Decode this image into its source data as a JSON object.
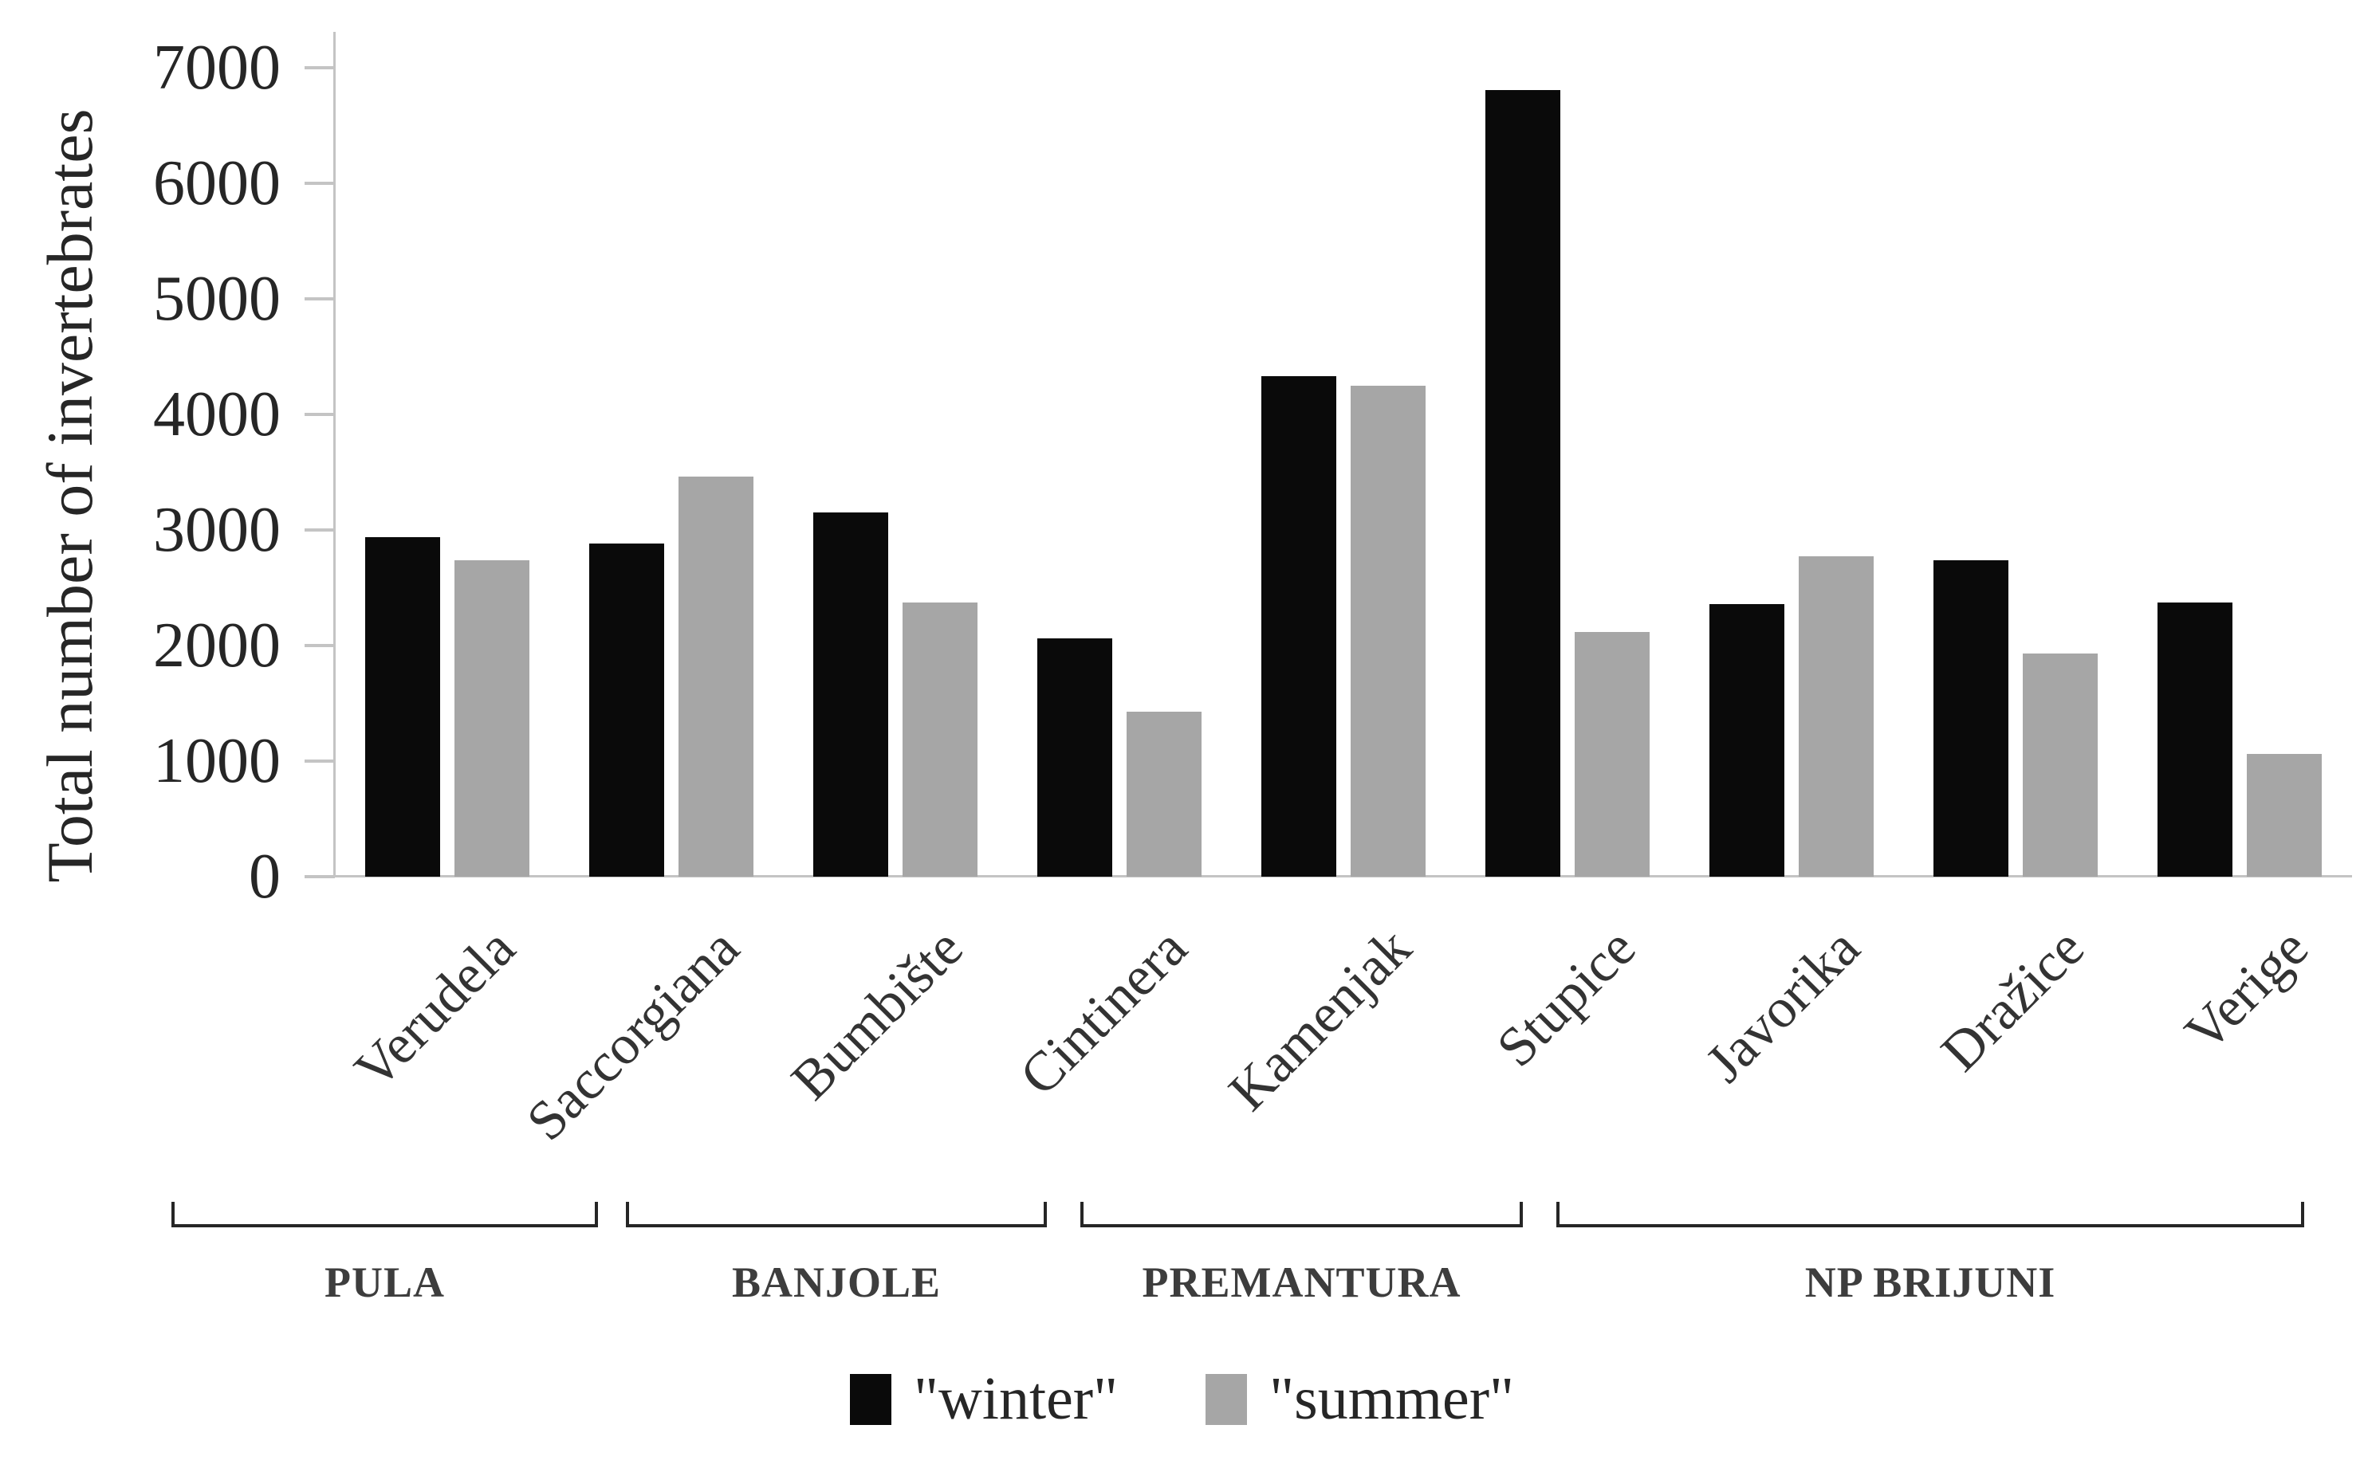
{
  "chart_data": {
    "type": "bar",
    "title": "",
    "ylabel": "Total number of invertebrates",
    "xlabel": "",
    "ylim": [
      0,
      7000
    ],
    "ytick_step": 1000,
    "yticks": [
      "0",
      "1000",
      "2000",
      "3000",
      "4000",
      "5000",
      "6000",
      "7000"
    ],
    "grid": false,
    "legend_position": "bottom",
    "categories": [
      "Verudela",
      "Saccorgiana",
      "Bumbište",
      "Cintinera",
      "Kamenjak",
      "Stupice",
      "Javorika",
      "Dražice",
      "Verige"
    ],
    "series": [
      {
        "name": "\"winter\"",
        "color": "#0a0a0a",
        "values": [
          2940,
          2880,
          3150,
          2060,
          4330,
          6810,
          2360,
          2740,
          2370
        ]
      },
      {
        "name": "\"summer\"",
        "color": "#a6a6a6",
        "values": [
          2740,
          3460,
          2370,
          1430,
          4250,
          2120,
          2770,
          1930,
          1060
        ]
      }
    ],
    "region_groups": [
      {
        "label": "PULA",
        "span": 2
      },
      {
        "label": "BANJOLE",
        "span": 2
      },
      {
        "label": "PREMANTURA",
        "span": 2
      },
      {
        "label": "NP BRIJUNI",
        "span": 3
      }
    ]
  },
  "colors": {
    "winter": "#0a0a0a",
    "summer": "#a6a6a6",
    "axis_line": "#c4c4c4",
    "text": "#262626",
    "bracket": "#262626"
  }
}
